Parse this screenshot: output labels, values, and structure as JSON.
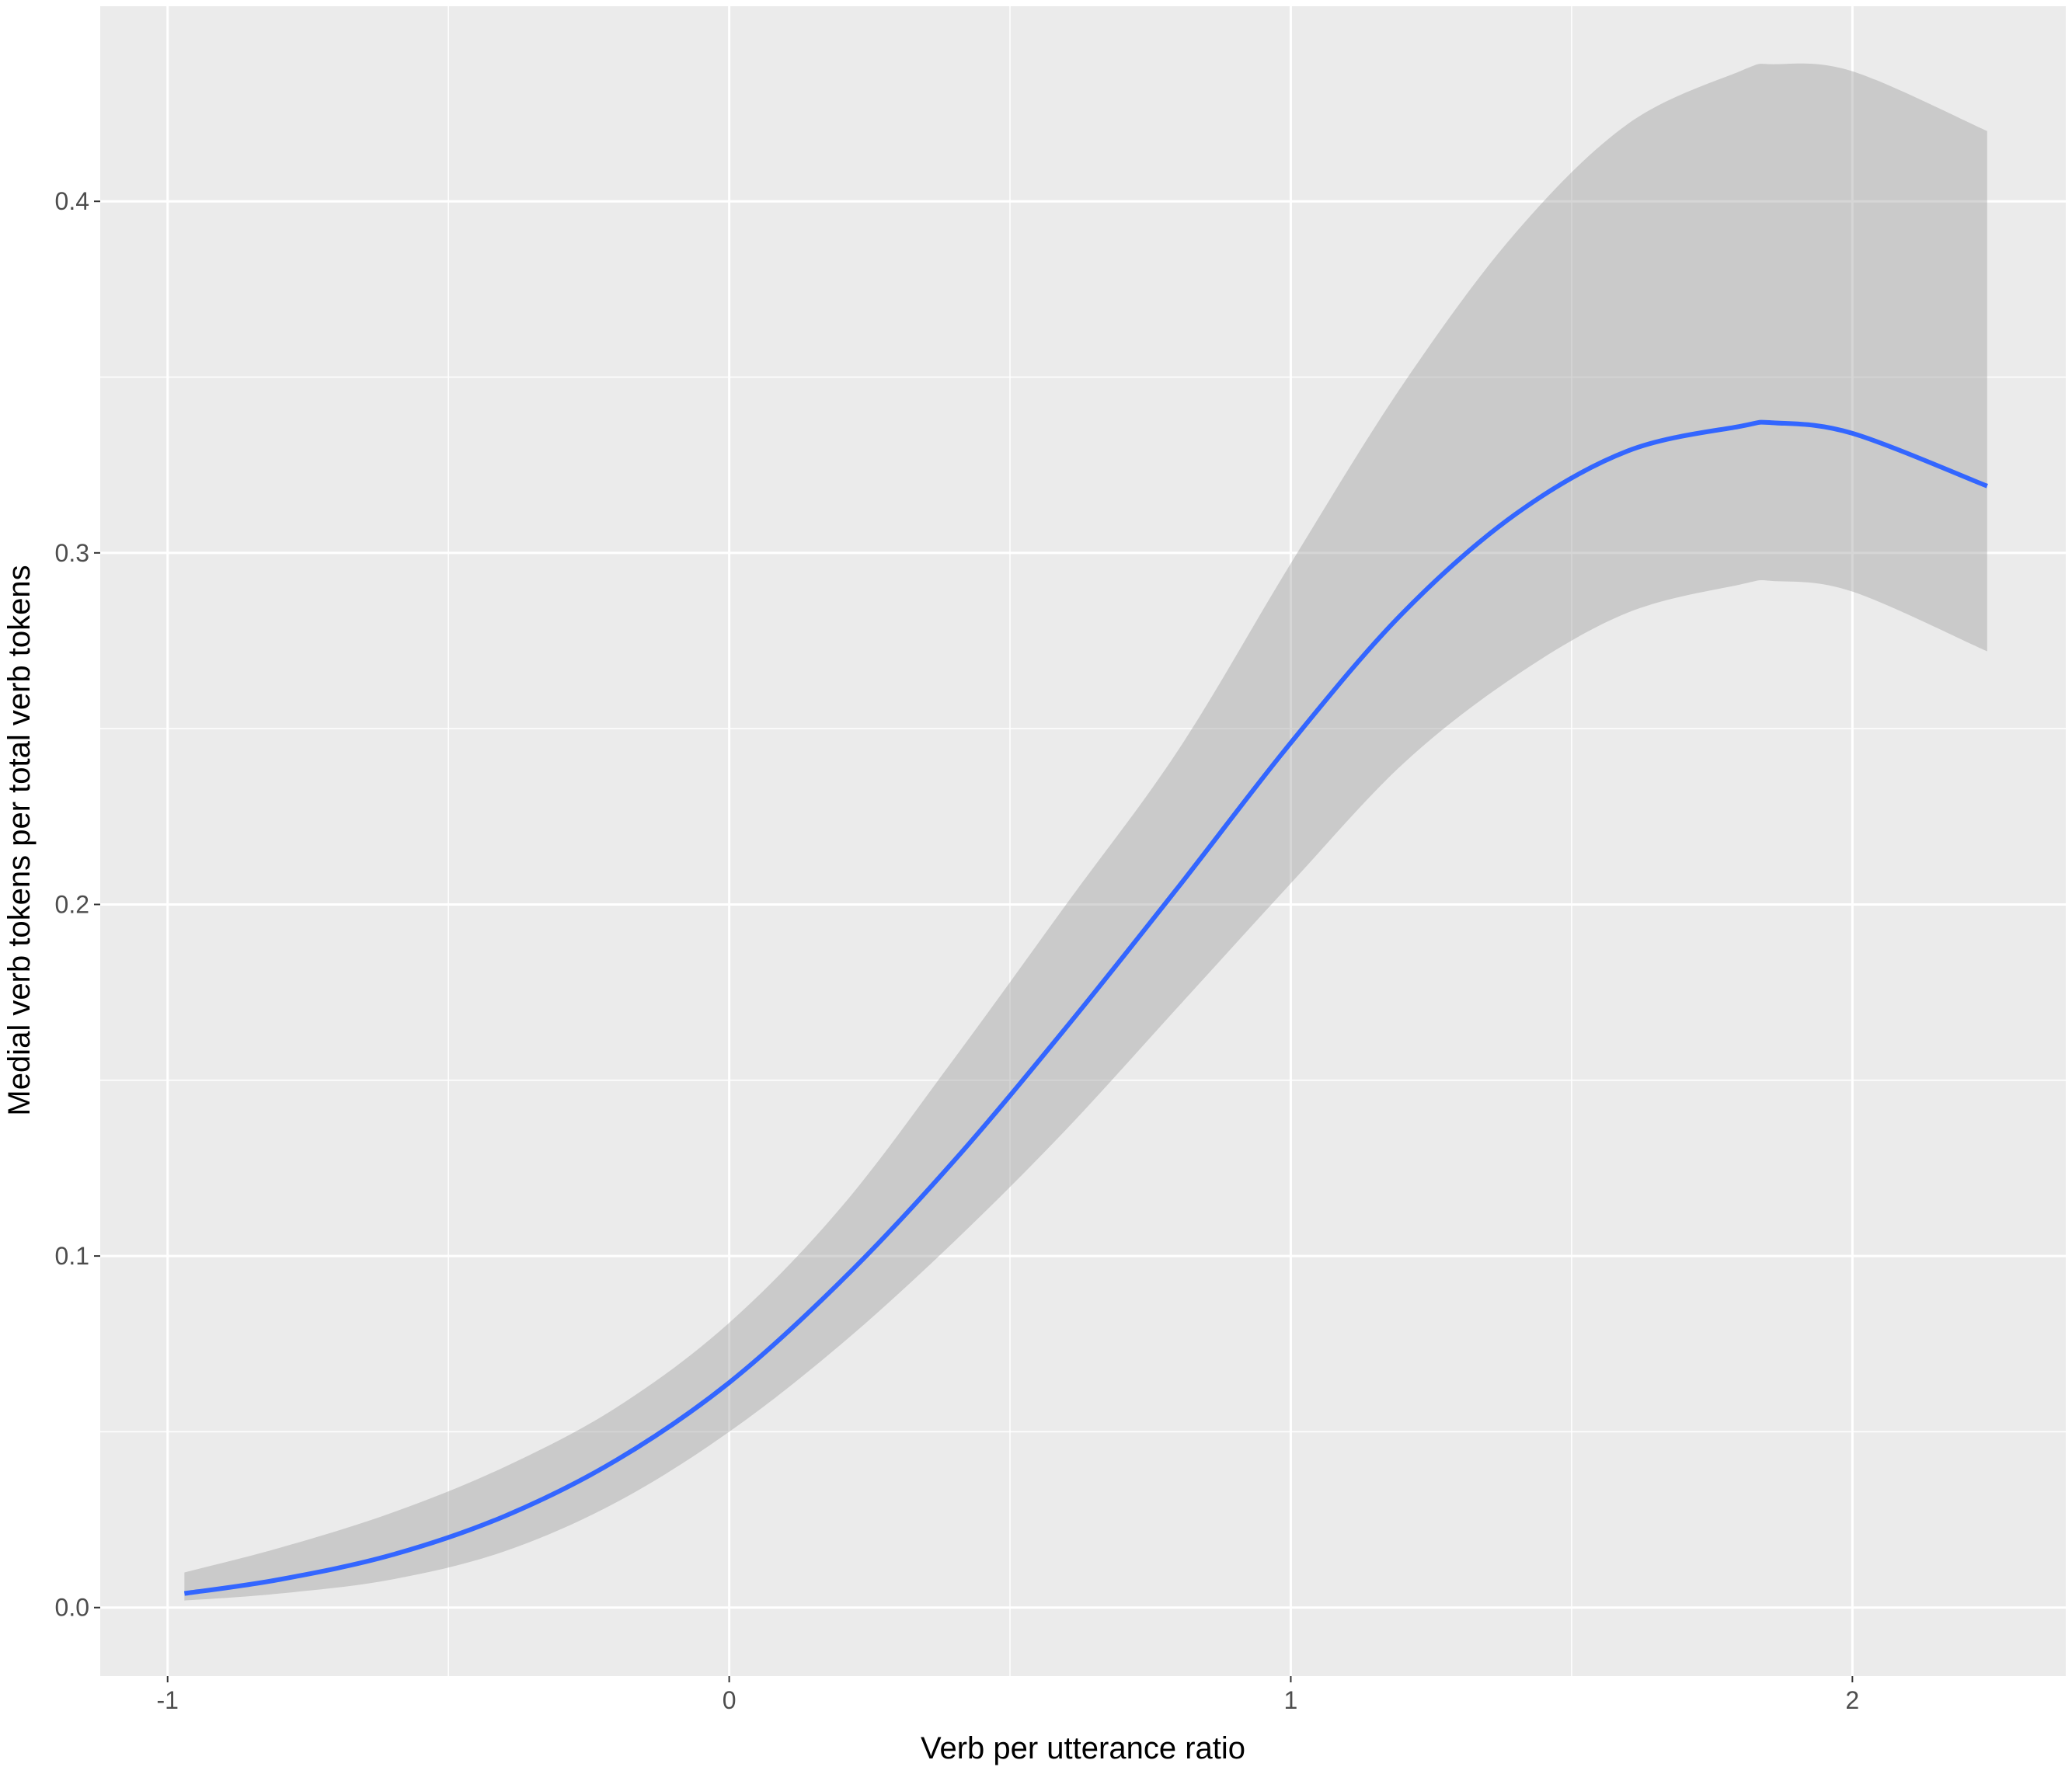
{
  "chart_data": {
    "type": "line",
    "title": "",
    "xlabel": "Verb per utterance ratio",
    "ylabel": "Medial verb tokens per total verb tokens",
    "xlim": [
      -1.12,
      2.38
    ],
    "ylim": [
      -0.0195,
      0.4555
    ],
    "x_ticks": [
      -1,
      0,
      1,
      2
    ],
    "x_tick_labels": [
      "-1",
      "0",
      "1",
      "2"
    ],
    "y_ticks": [
      0.0,
      0.1,
      0.2,
      0.3,
      0.4
    ],
    "y_tick_labels": [
      "0.0",
      "0.1",
      "0.2",
      "0.3",
      "0.4"
    ],
    "grid": true,
    "legend": "none",
    "colors": {
      "panel_background": "#ebebeb",
      "grid": "#ffffff",
      "line": "#3366ff",
      "ribbon": "#999999"
    },
    "series": [
      {
        "kind": "smooth-fit-with-confidence-band",
        "x": [
          -0.97,
          -0.8,
          -0.6,
          -0.4,
          -0.2,
          0.0,
          0.2,
          0.4,
          0.6,
          0.8,
          1.0,
          1.2,
          1.4,
          1.6,
          1.8,
          1.86,
          2.0,
          2.24
        ],
        "y": [
          0.004,
          0.008,
          0.015,
          0.026,
          0.042,
          0.064,
          0.093,
          0.127,
          0.165,
          0.205,
          0.246,
          0.283,
          0.311,
          0.329,
          0.336,
          0.337,
          0.334,
          0.319
        ],
        "lower": [
          0.002,
          0.004,
          0.008,
          0.016,
          0.03,
          0.05,
          0.075,
          0.104,
          0.136,
          0.171,
          0.206,
          0.24,
          0.265,
          0.283,
          0.291,
          0.292,
          0.289,
          0.272
        ],
        "upper": [
          0.01,
          0.017,
          0.027,
          0.04,
          0.057,
          0.081,
          0.114,
          0.156,
          0.2,
          0.244,
          0.297,
          0.348,
          0.391,
          0.422,
          0.437,
          0.439,
          0.437,
          0.42
        ]
      }
    ]
  }
}
